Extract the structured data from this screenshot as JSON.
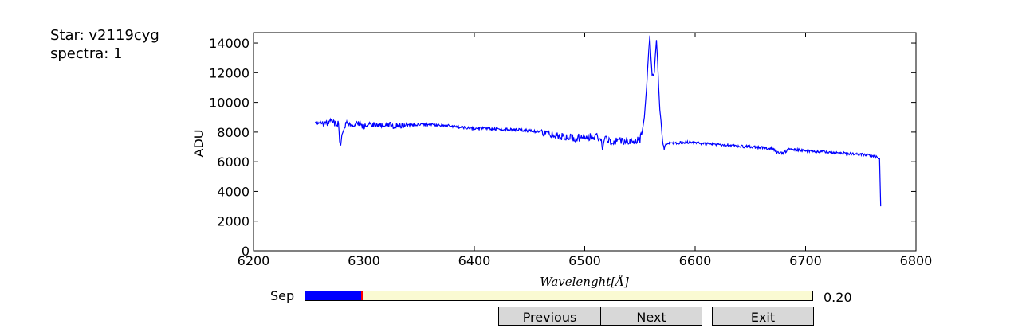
{
  "info": {
    "star_label": "Star: v2119cyg",
    "spectra_label": "spectra: 1"
  },
  "chart_data": {
    "type": "line",
    "xlabel": "Wavelenght[Å]",
    "ylabel": "ADU",
    "xlim": [
      6200,
      6800
    ],
    "ylim": [
      0,
      14700
    ],
    "x_ticks": [
      6200,
      6300,
      6400,
      6500,
      6600,
      6700,
      6800
    ],
    "y_ticks": [
      0,
      2000,
      4000,
      6000,
      8000,
      10000,
      12000,
      14000
    ],
    "grid": false,
    "line_color": "#0000ff",
    "series": [
      {
        "x": [
          6256,
          6260,
          6265,
          6270,
          6275,
          6277,
          6278,
          6279,
          6280,
          6283,
          6286,
          6290,
          6295,
          6300,
          6305,
          6310,
          6315,
          6320,
          6330,
          6340,
          6350,
          6360,
          6370,
          6380,
          6390,
          6400,
          6410,
          6420,
          6430,
          6440,
          6450,
          6460,
          6470,
          6480,
          6490,
          6500,
          6510,
          6515,
          6516,
          6518,
          6520,
          6525,
          6530,
          6535,
          6540,
          6545,
          6550,
          6552,
          6554,
          6556,
          6558,
          6559,
          6560,
          6561,
          6562,
          6563,
          6564,
          6565,
          6566,
          6567,
          6568,
          6569,
          6570,
          6571,
          6572,
          6573,
          6575,
          6580,
          6590,
          6600,
          6610,
          6620,
          6630,
          6640,
          6650,
          6660,
          6670,
          6675,
          6680,
          6685,
          6690,
          6700,
          6710,
          6720,
          6730,
          6740,
          6750,
          6755,
          6760,
          6765,
          6766,
          6767,
          6768
        ],
        "y": [
          8600,
          8700,
          8500,
          8750,
          8500,
          8600,
          7500,
          7100,
          7800,
          8400,
          8700,
          8300,
          8600,
          8350,
          8600,
          8500,
          8400,
          8500,
          8400,
          8450,
          8500,
          8500,
          8450,
          8400,
          8300,
          8250,
          8250,
          8200,
          8200,
          8150,
          8100,
          8000,
          7800,
          7700,
          7600,
          7650,
          7700,
          7500,
          6800,
          7600,
          7500,
          7350,
          7450,
          7400,
          7400,
          7400,
          7500,
          8000,
          9000,
          11000,
          13500,
          14500,
          13000,
          11900,
          11800,
          12000,
          13200,
          14200,
          12800,
          11000,
          9500,
          8800,
          7800,
          7100,
          6900,
          7200,
          7200,
          7250,
          7300,
          7300,
          7200,
          7150,
          7100,
          7050,
          7000,
          6950,
          6900,
          6600,
          6600,
          6850,
          6800,
          6750,
          6700,
          6650,
          6600,
          6550,
          6500,
          6450,
          6400,
          6300,
          6200,
          6200,
          3000
        ]
      }
    ]
  },
  "slider": {
    "label": "Sep",
    "value": 0.2,
    "value_text": "0.20",
    "fill_color": "#0000ff",
    "handle_color": "#ff0000",
    "track_color": "#fafad2"
  },
  "buttons": {
    "previous": "Previous",
    "next": "Next",
    "exit": "Exit"
  }
}
